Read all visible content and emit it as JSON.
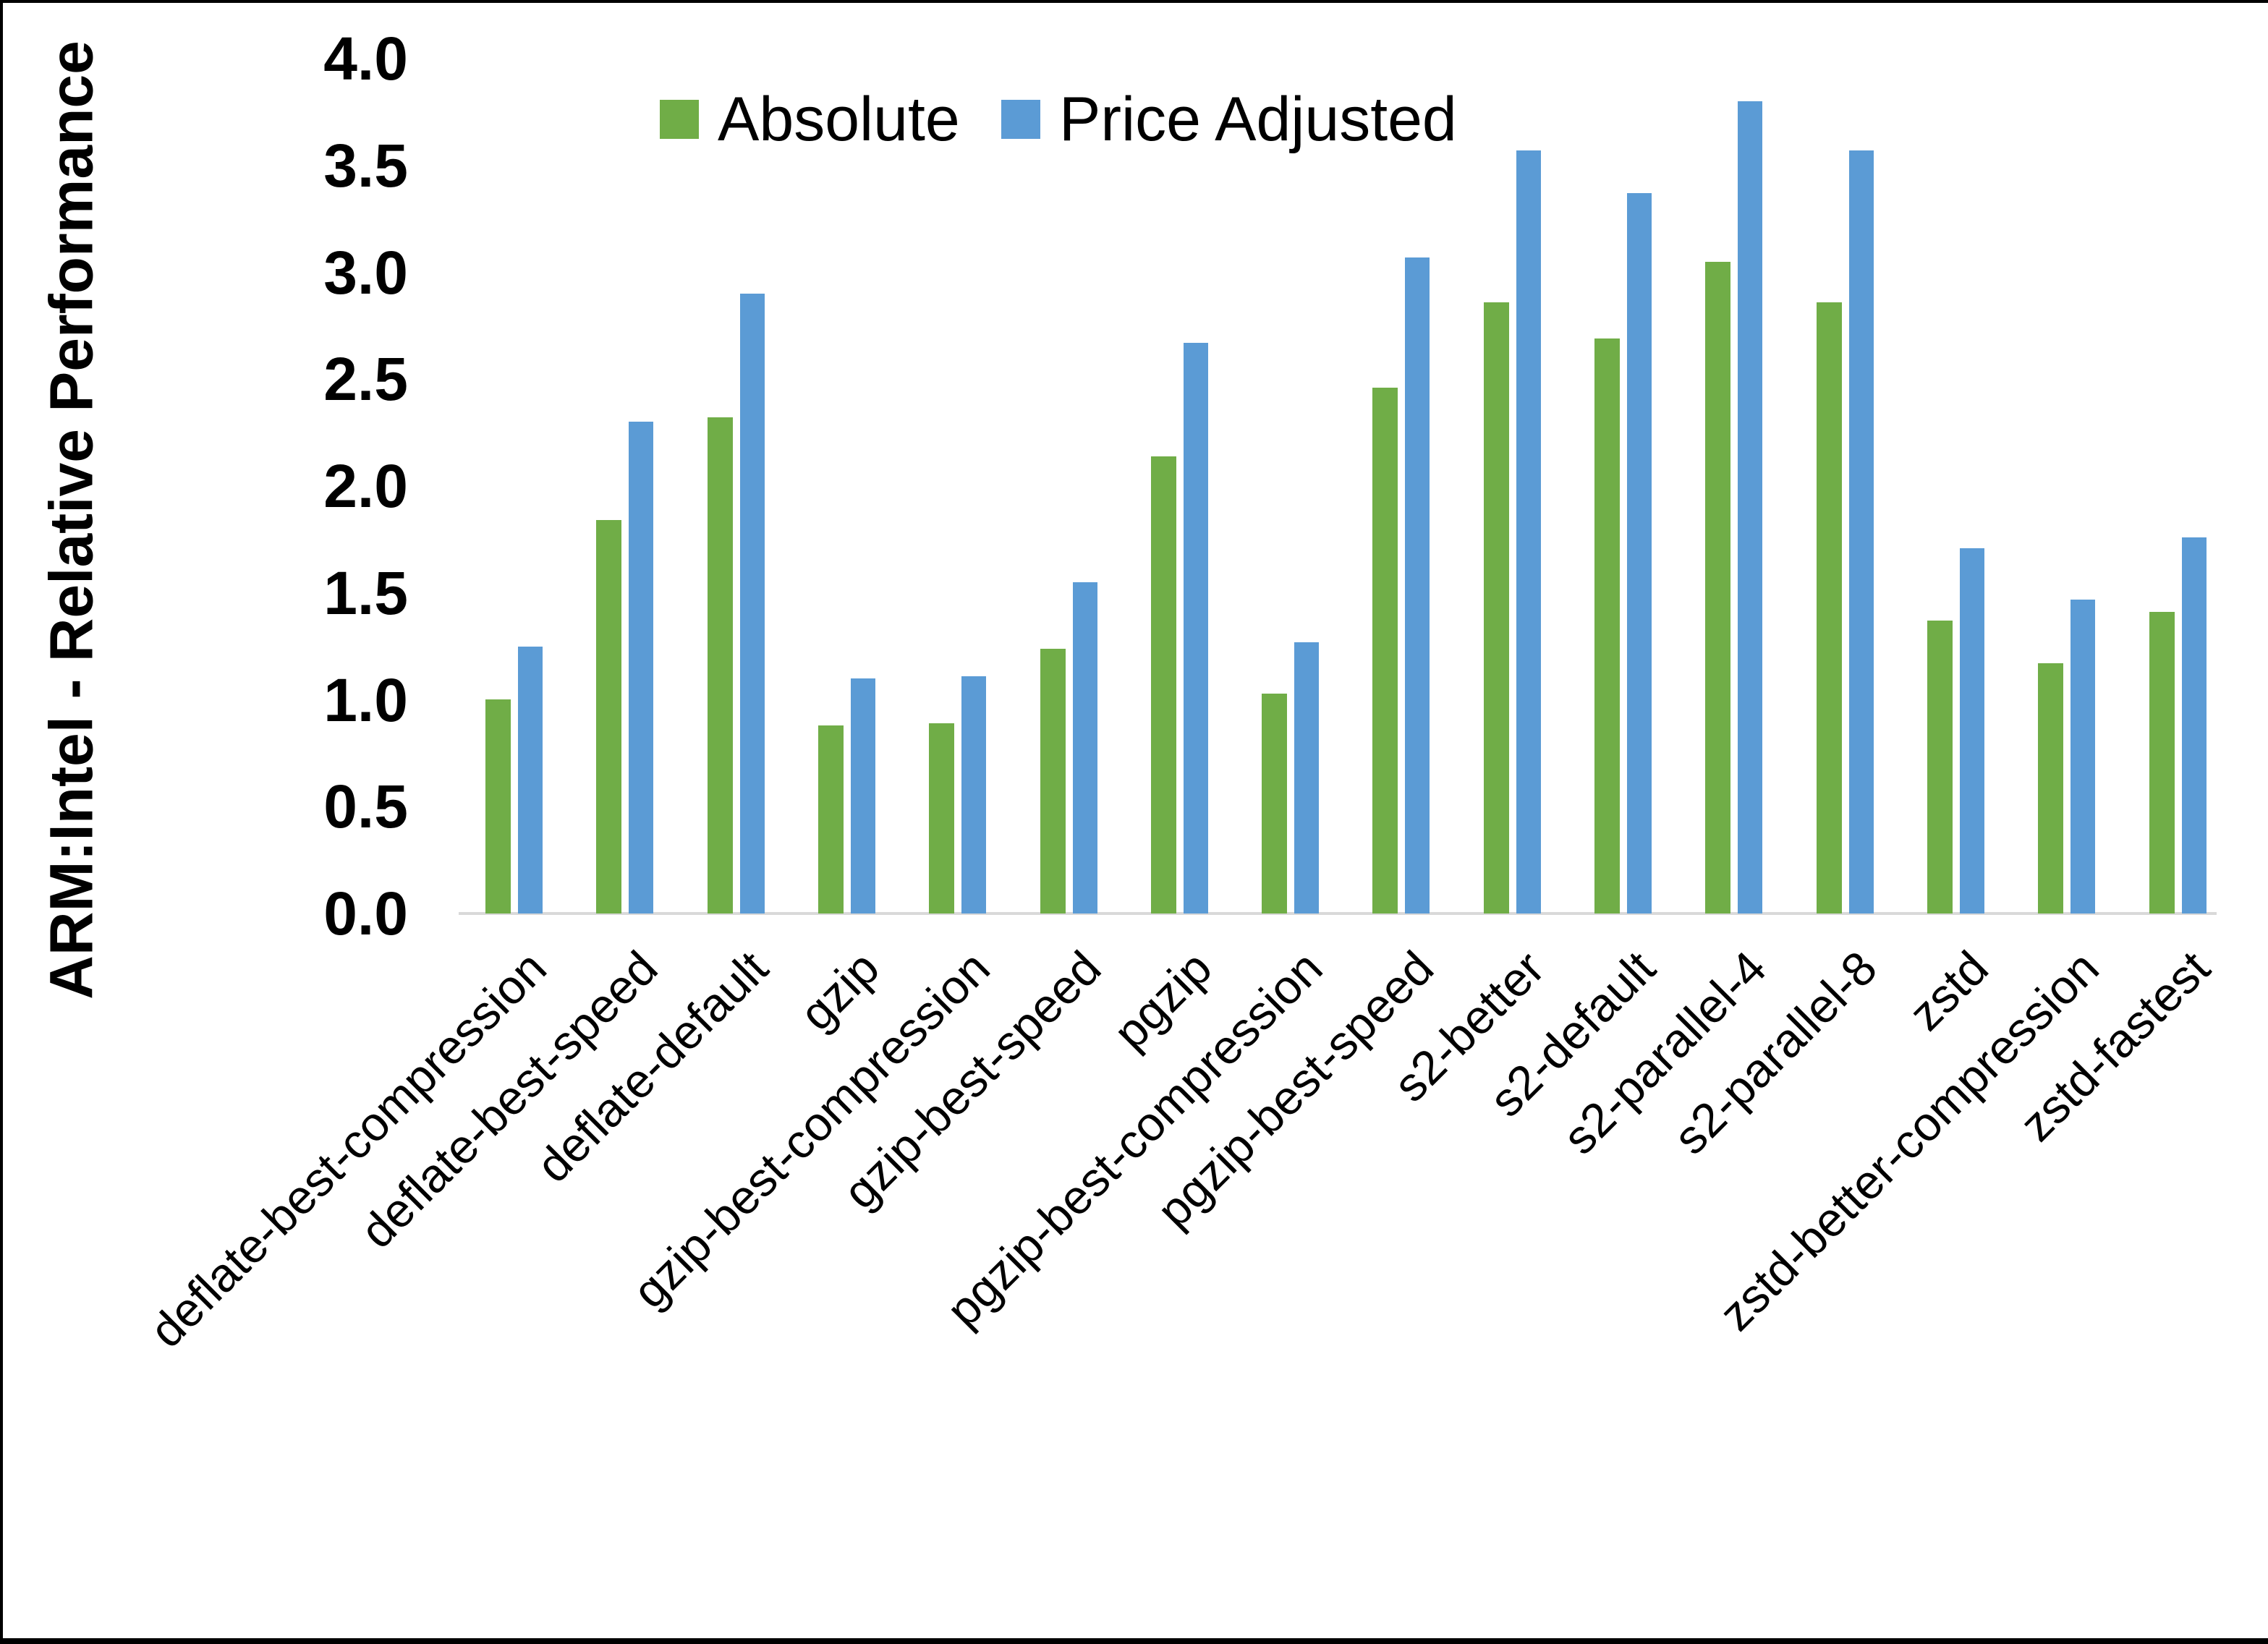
{
  "chart_data": {
    "type": "bar",
    "title": "",
    "ylabel": "ARM:Intel - Relative Performance",
    "xlabel": "",
    "ylim": [
      0.0,
      4.0
    ],
    "ytick_step": 0.5,
    "ytick_labels": [
      "0.0",
      "0.5",
      "1.0",
      "1.5",
      "2.0",
      "2.5",
      "3.0",
      "3.5",
      "4.0"
    ],
    "grid": "off",
    "legend_position": "top-center",
    "categories": [
      "deflate-best-compression",
      "deflate-best-speed",
      "deflate-default",
      "gzip",
      "gzip-best-compression",
      "gzip-best-speed",
      "pgzip",
      "pgzip-best-compression",
      "pgzip-best-speed",
      "s2-better",
      "s2-default",
      "s2-parallel-4",
      "s2-parallel-8",
      "zstd",
      "zstd-better-compression",
      "zstd-fastest"
    ],
    "series": [
      {
        "name": "Absolute",
        "color": "#70AD47",
        "values": [
          1.0,
          1.84,
          2.32,
          0.88,
          0.89,
          1.24,
          2.14,
          1.03,
          2.46,
          2.86,
          2.69,
          3.05,
          2.86,
          1.37,
          1.17,
          1.41
        ]
      },
      {
        "name": "Price Adjusted",
        "color": "#5B9BD5",
        "values": [
          1.25,
          2.3,
          2.9,
          1.1,
          1.11,
          1.55,
          2.67,
          1.27,
          3.07,
          3.57,
          3.37,
          3.8,
          3.57,
          1.71,
          1.47,
          1.76
        ]
      }
    ],
    "axis_line_color": "#D9D9D9"
  },
  "legend": {
    "absolute_label": "Absolute",
    "price_adjusted_label": "Price Adjusted"
  }
}
